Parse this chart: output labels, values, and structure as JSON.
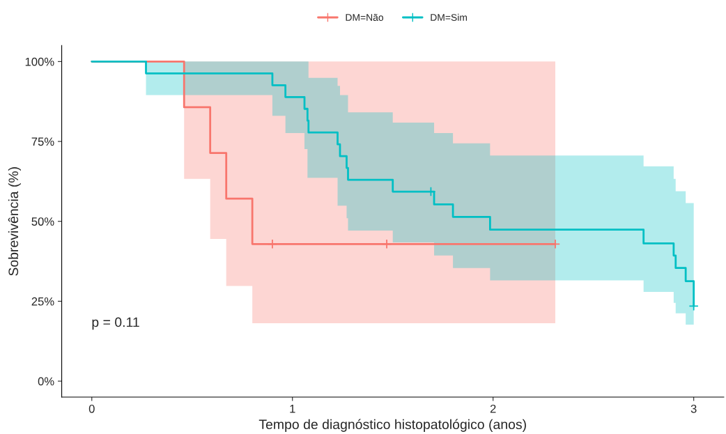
{
  "chart_data": {
    "type": "step",
    "xlabel": "Tempo de diagnóstico histopatológico (anos)",
    "ylabel": "Sobrevivência (%)",
    "xlim": [
      -0.15,
      3.15
    ],
    "xticks": [
      0,
      1,
      2,
      3
    ],
    "ylim": [
      -5,
      105
    ],
    "yticks": [
      {
        "value": 0,
        "label": "0%"
      },
      {
        "value": 25,
        "label": "25%"
      },
      {
        "value": 50,
        "label": "50%"
      },
      {
        "value": 75,
        "label": "75%"
      },
      {
        "value": 100,
        "label": "100%"
      }
    ],
    "grid": false,
    "legend": "top",
    "annotations": [
      "p = 0.11"
    ],
    "series": [
      {
        "name": "DM=Não",
        "color": "#f8766d",
        "x": [
          0,
          0.46,
          0.59,
          0.67,
          0.8,
          2.31
        ],
        "values": [
          100,
          85.7,
          71.4,
          57.1,
          42.9,
          42.9
        ],
        "lower": [
          100,
          63.3,
          44.5,
          29.8,
          18.1,
          18.1
        ],
        "upper": [
          100,
          100,
          100,
          100,
          100,
          100
        ]
      },
      {
        "name": "DM=Sim",
        "color": "#00bfc4",
        "x": [
          0,
          0.27,
          0.9,
          0.965,
          1.06,
          1.075,
          1.08,
          1.225,
          1.237,
          1.27,
          1.277,
          1.5,
          1.706,
          1.8,
          1.985,
          2.75,
          2.9,
          2.91,
          2.96,
          3.0
        ],
        "values": [
          100,
          96.3,
          92.6,
          88.9,
          85.2,
          81.5,
          77.8,
          74.1,
          70.4,
          66.7,
          63.0,
          59.3,
          55.3,
          51.4,
          47.4,
          43.1,
          39.3,
          35.4,
          31.3,
          23.5
        ],
        "lower": [
          100,
          89.5,
          83.0,
          77.6,
          72.6,
          63.6,
          63.6,
          54.9,
          54.9,
          51.0,
          47.1,
          43.4,
          39.3,
          35.4,
          31.5,
          27.9,
          24.5,
          21.2,
          17.7,
          17.7
        ],
        "upper": [
          100,
          100,
          100,
          100,
          100,
          100,
          94.9,
          92.4,
          89.5,
          89.5,
          84.1,
          80.9,
          77.6,
          74.4,
          70.6,
          67.2,
          63.3,
          59.4,
          55.7,
          55.7
        ]
      },
      {
        "type": "scatter",
        "marker": "cross",
        "color": "#f8766d",
        "x": [
          0.9,
          1.47,
          2.31
        ],
        "values": [
          42.9,
          42.9,
          42.9
        ]
      },
      {
        "type": "scatter",
        "marker": "cross",
        "color": "#00bfc4",
        "x": [
          1.69,
          3.0
        ],
        "values": [
          59.3,
          23.5
        ]
      }
    ]
  }
}
